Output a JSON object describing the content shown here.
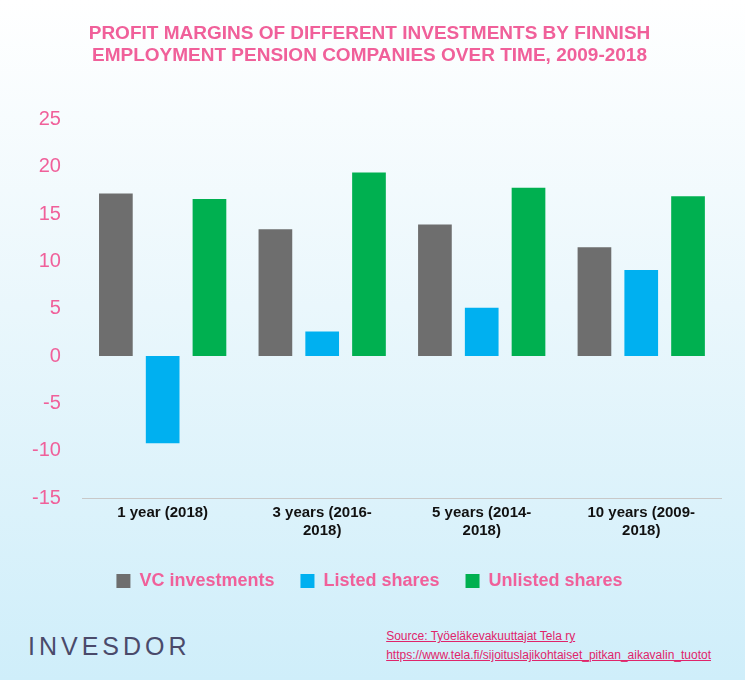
{
  "chart_data": {
    "type": "bar",
    "title": [
      "PROFIT MARGINS OF DIFFERENT INVESTMENTS BY FINNISH",
      "EMPLOYMENT PENSION COMPANIES OVER TIME, 2009-2018"
    ],
    "categories": [
      "1 year (2018)",
      "3 years (2016-2018)",
      "5 years (2014-2018)",
      "10 years (2009-2018)"
    ],
    "series": [
      {
        "name": "VC investments",
        "color": "#6e6e6e",
        "values": [
          17.2,
          13.4,
          13.9,
          11.5
        ]
      },
      {
        "name": "Listed shares",
        "color": "#00b0f0",
        "values": [
          -9.2,
          2.6,
          5.1,
          9.1
        ]
      },
      {
        "name": "Unlisted shares",
        "color": "#00b050",
        "values": [
          16.6,
          19.4,
          17.8,
          16.9
        ]
      }
    ],
    "ylim": [
      -15,
      25
    ],
    "yticks": [
      -15,
      -10,
      -5,
      0,
      5,
      10,
      15,
      20,
      25
    ],
    "grid": false,
    "legend": "bottom",
    "annotations": [
      "INVESDOR",
      "Source: Työeläkevakuuttajat Tela ry",
      "https://www.tela.fi/sijoituslajikohtaiset_pitkan_aikavalin_tuotot"
    ]
  }
}
